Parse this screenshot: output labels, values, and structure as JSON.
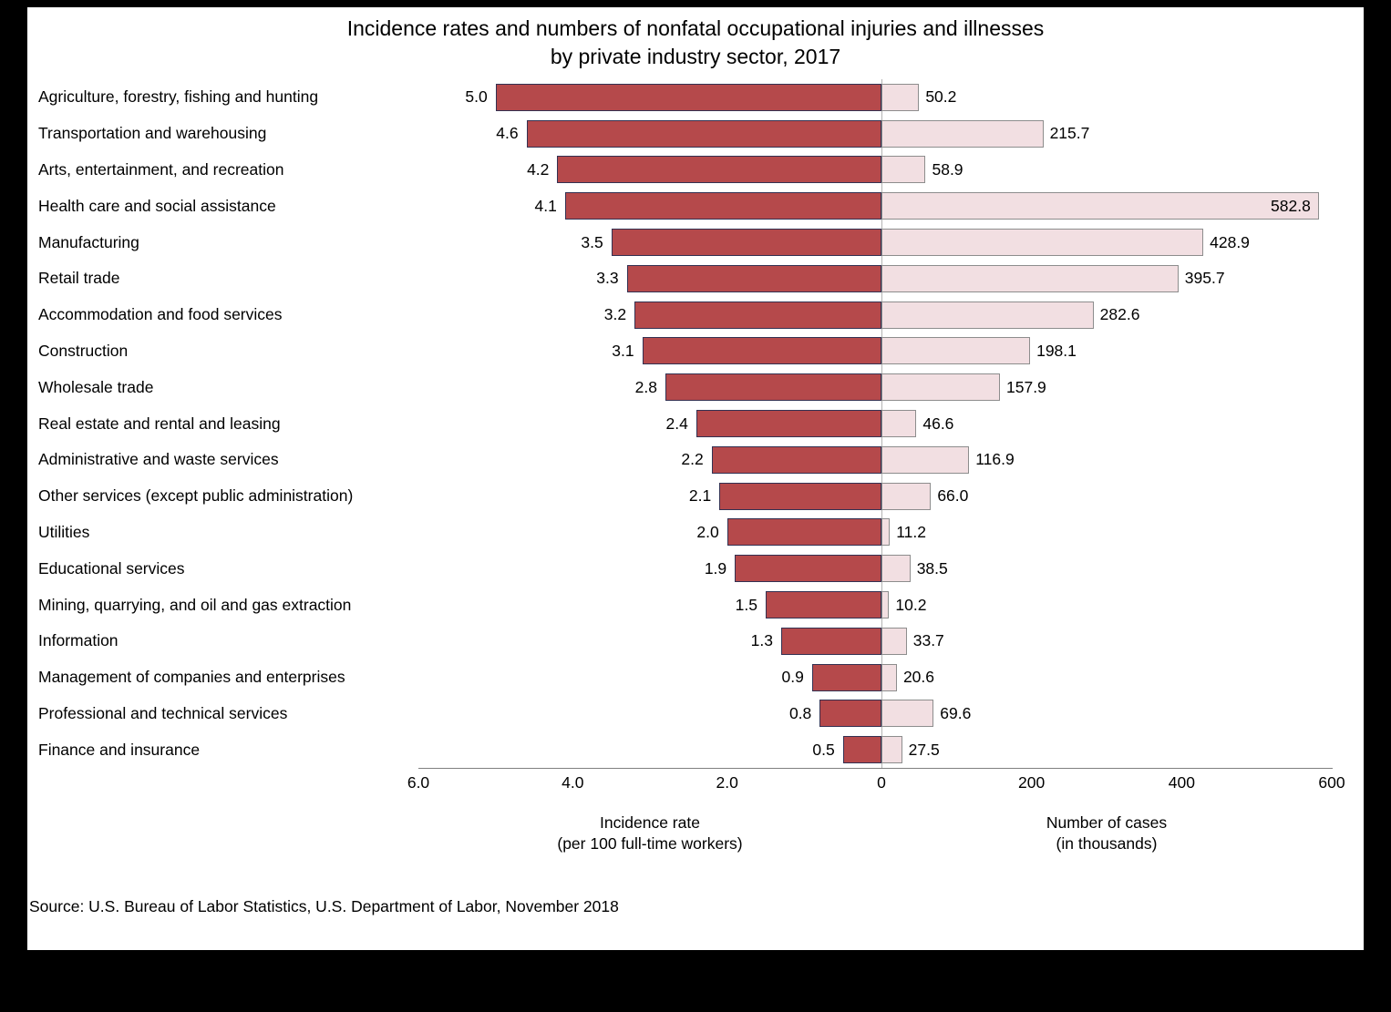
{
  "header": {
    "title_line1": "Incidence rates and numbers of nonfatal occupational injuries and illnesses",
    "title_line2": "by private industry sector, 2017"
  },
  "footer": {
    "source": "Source: U.S. Bureau of Labor Statistics, U.S. Department of Labor, November 2018"
  },
  "axes": {
    "left": {
      "title_line1": "Incidence rate",
      "title_line2": "(per 100 full-time workers)",
      "max": 6.0,
      "ticks": [
        {
          "label": "6.0",
          "value": 6.0
        },
        {
          "label": "4.0",
          "value": 4.0
        },
        {
          "label": "2.0",
          "value": 2.0
        },
        {
          "label": "0",
          "value": 0
        }
      ]
    },
    "right": {
      "title_line1": "Number of cases",
      "title_line2": "(in thousands)",
      "max": 600,
      "ticks": [
        {
          "label": "200",
          "value": 200
        },
        {
          "label": "400",
          "value": 400
        },
        {
          "label": "600",
          "value": 600
        }
      ]
    }
  },
  "colors": {
    "rate_bar_fill": "#b5494b",
    "rate_bar_border": "#333152",
    "cases_bar_fill": "#f2dfe2",
    "cases_bar_border": "#8d8d8d",
    "frame": "#000000",
    "background": "#ffffff",
    "axis_line": "#7f7f7f"
  },
  "chart_data": {
    "type": "bar",
    "orientation": "diverging-horizontal",
    "title": "Incidence rates and numbers of nonfatal occupational injuries and illnesses by private industry sector, 2017",
    "grid": false,
    "legend": false,
    "categories": [
      "Agriculture, forestry, fishing and hunting",
      "Transportation and warehousing",
      "Arts, entertainment, and recreation",
      "Health care and social assistance",
      "Manufacturing",
      "Retail trade",
      "Accommodation and food services",
      "Construction",
      "Wholesale trade",
      "Real estate and rental and leasing",
      "Administrative and waste services",
      "Other services (except public administration)",
      "Utilities",
      "Educational services",
      "Mining, quarrying, and oil and gas extraction",
      "Information",
      "Management of companies and enterprises",
      "Professional and technical services",
      "Finance and insurance"
    ],
    "series": [
      {
        "name": "Incidence rate (per 100 full-time workers)",
        "side": "left",
        "axis_max": 6.0,
        "axis_ticks": [
          6.0,
          4.0,
          2.0,
          0
        ],
        "color": "#b5494b",
        "values": [
          5.0,
          4.6,
          4.2,
          4.1,
          3.5,
          3.3,
          3.2,
          3.1,
          2.8,
          2.4,
          2.2,
          2.1,
          2.0,
          1.9,
          1.5,
          1.3,
          0.9,
          0.8,
          0.5
        ]
      },
      {
        "name": "Number of cases (in thousands)",
        "side": "right",
        "axis_max": 600,
        "axis_ticks": [
          0,
          200,
          400,
          600
        ],
        "color": "#f2dfe2",
        "values": [
          50.2,
          215.7,
          58.9,
          582.8,
          428.9,
          395.7,
          282.6,
          198.1,
          157.9,
          46.6,
          116.9,
          66.0,
          11.2,
          38.5,
          10.2,
          33.7,
          20.6,
          69.6,
          27.5
        ]
      }
    ]
  }
}
